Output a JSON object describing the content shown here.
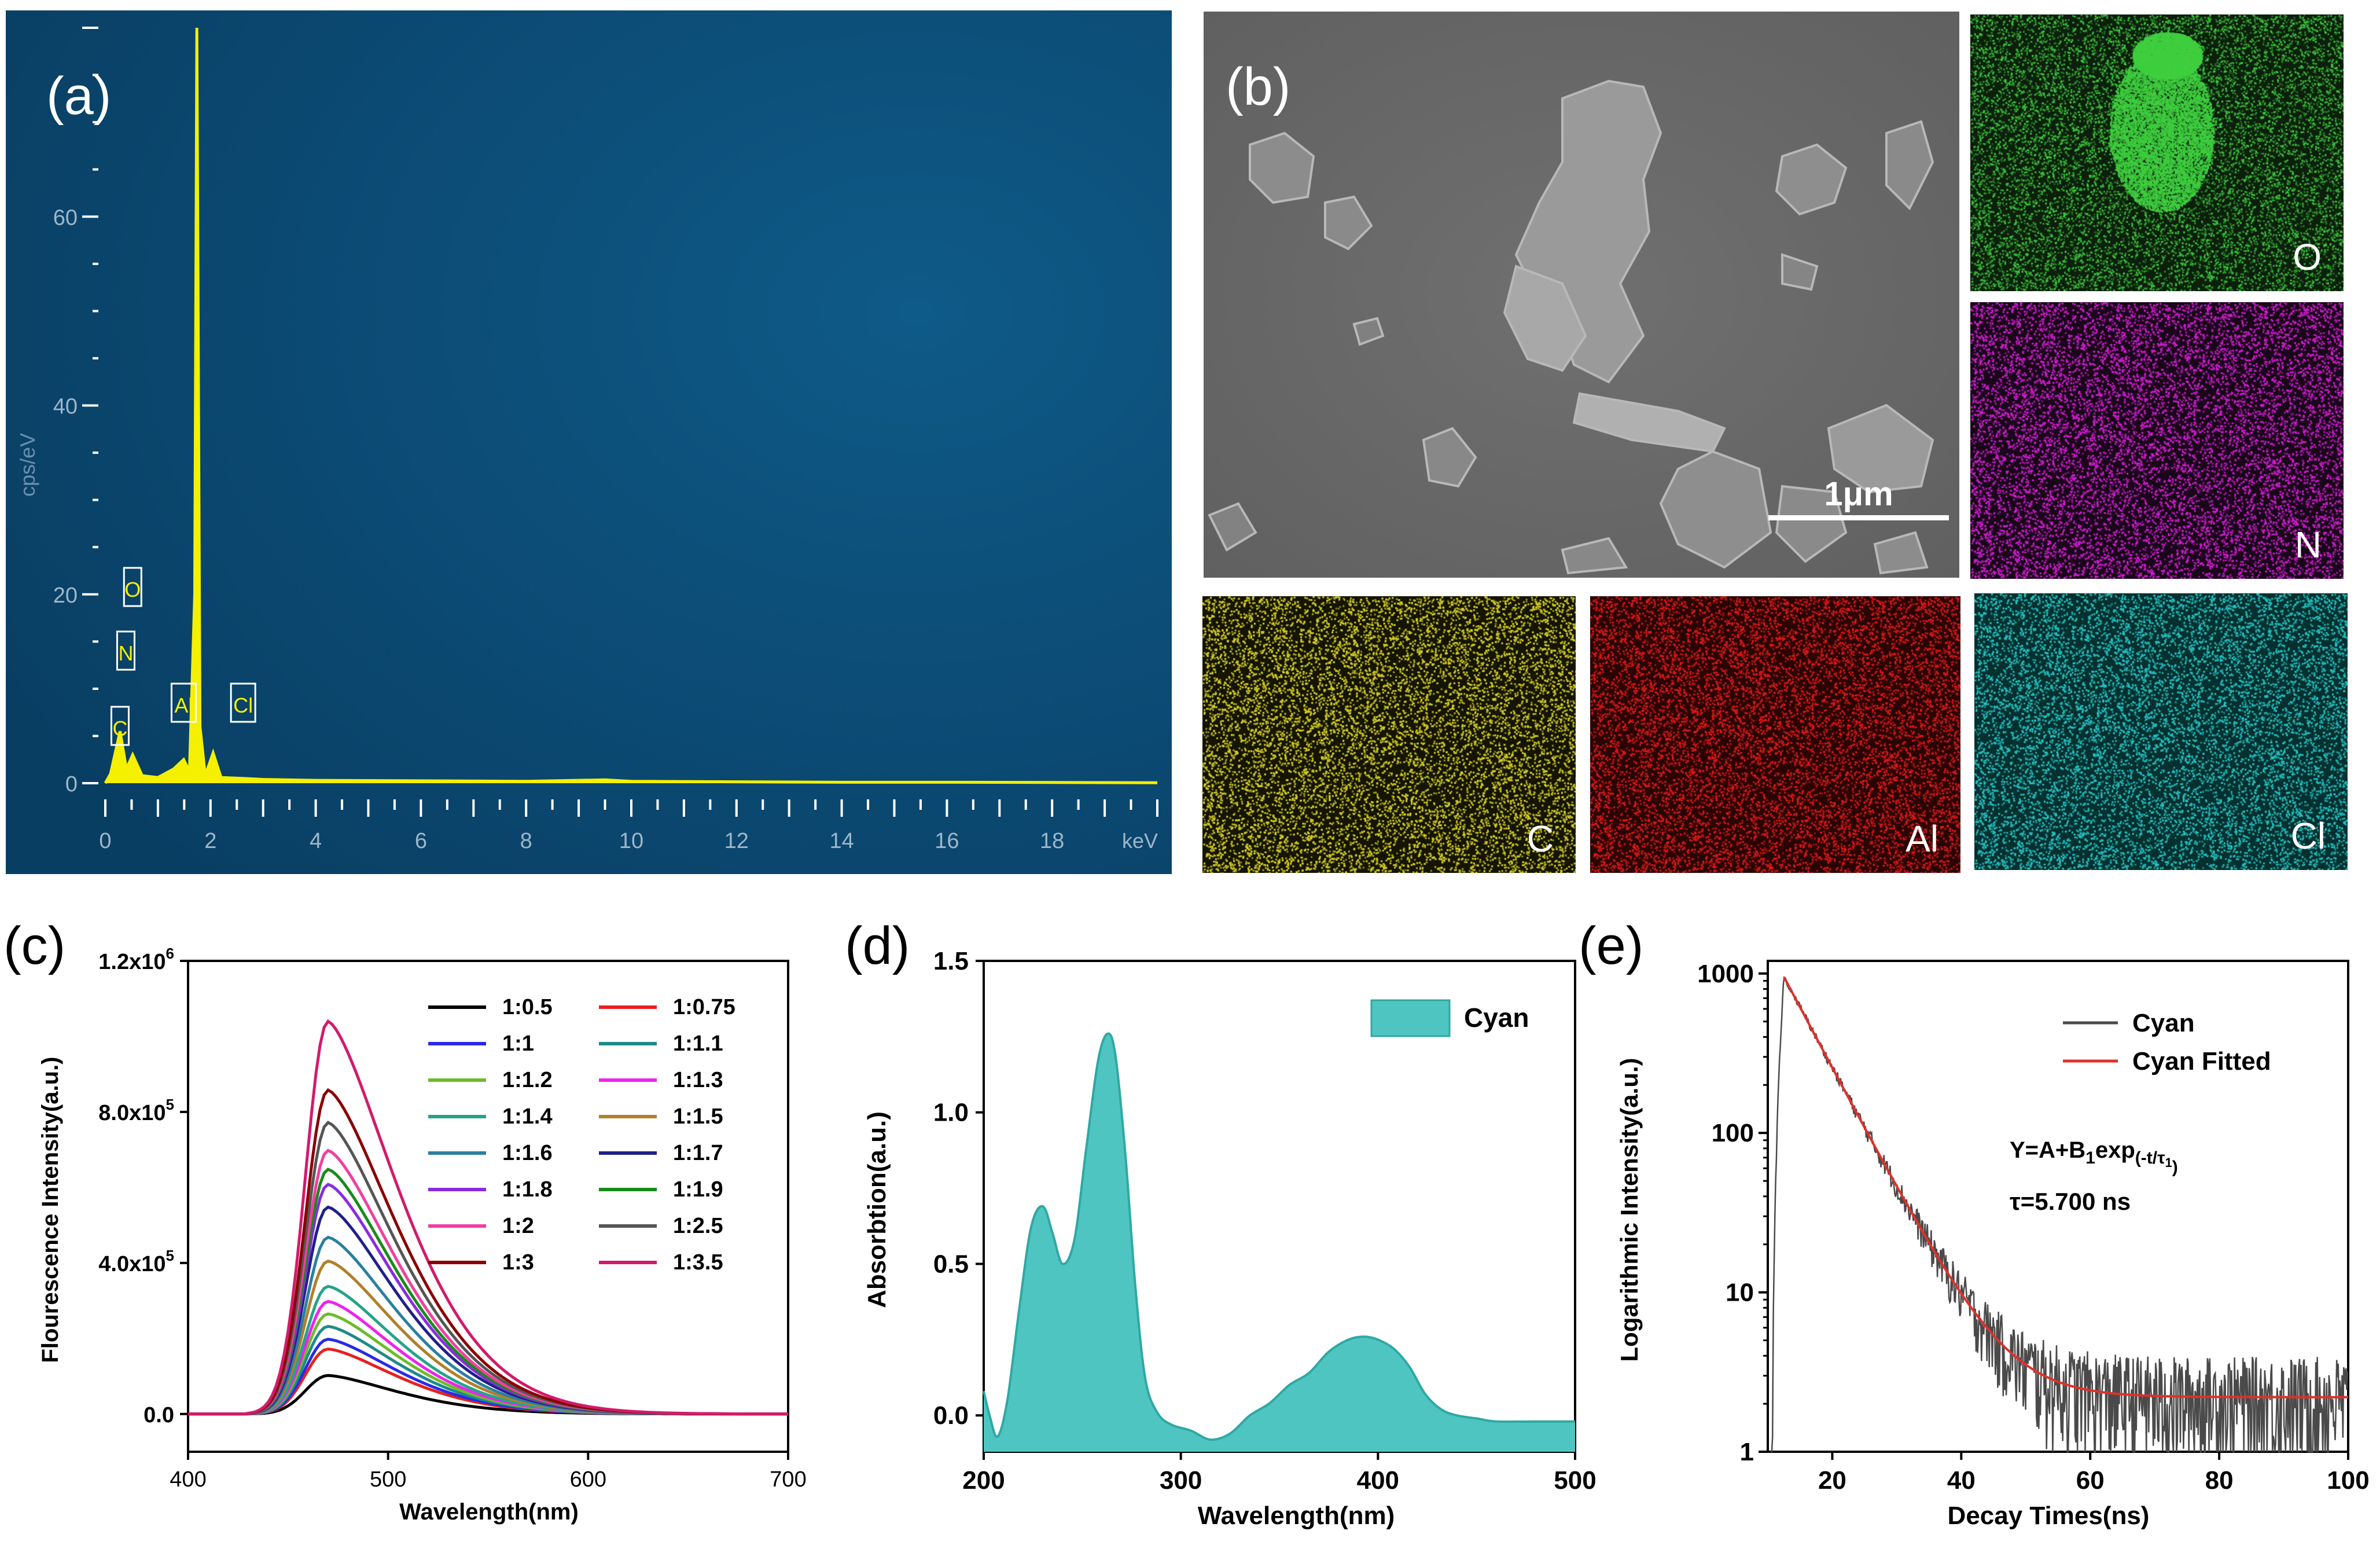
{
  "figure": {
    "panel_labels": {
      "a": "(a)",
      "b": "(b)",
      "c": "(c)",
      "d": "(d)",
      "e": "(e)"
    }
  },
  "colors": {
    "eds_bg": "#0b4d78",
    "eds_trace": "#f4f000",
    "sem_bg": "#6d6d6d",
    "O": "#3fcf3f",
    "N": "#d21fd2",
    "C": "#d6cf2a",
    "Al": "#e01a1a",
    "Cl": "#26c2c2",
    "cyan_fill": "#4ec5c1",
    "decay": "#4a4a4a",
    "fit": "#e0302a"
  },
  "eds": {
    "ylabel": "cps/eV",
    "xunit": "keV",
    "peaks": [
      "C",
      "N",
      "O",
      "Al",
      "Cl"
    ],
    "chart_data": {
      "type": "line",
      "title": "",
      "xlabel": "keV",
      "ylabel": "cps/eV",
      "xlim": [
        0,
        20
      ],
      "ylim": [
        0,
        80
      ],
      "xticks": [
        0,
        2,
        4,
        6,
        8,
        10,
        12,
        14,
        16,
        18
      ],
      "yticks": [
        0,
        20,
        40,
        60
      ],
      "x": [
        0,
        0.1,
        0.28,
        0.4,
        0.52,
        0.7,
        1.0,
        1.3,
        1.49,
        1.6,
        1.7,
        1.74,
        1.8,
        1.9,
        2.05,
        2.2,
        2.62,
        3.0,
        4,
        6,
        8,
        9.5,
        10,
        12,
        14,
        16,
        18,
        20
      ],
      "y": [
        0,
        1.0,
        5.5,
        1.5,
        3.0,
        0.8,
        0.6,
        1.5,
        2.5,
        1.2,
        20,
        80,
        6,
        0.8,
        3.2,
        0.6,
        0.5,
        0.4,
        0.3,
        0.25,
        0.2,
        0.35,
        0.2,
        0.15,
        0.1,
        0.1,
        0.08,
        0.05
      ]
    }
  },
  "sem": {
    "scale_bar": "1μm",
    "maps": [
      {
        "element": "O"
      },
      {
        "element": "N"
      },
      {
        "element": "C"
      },
      {
        "element": "Al"
      },
      {
        "element": "Cl"
      }
    ]
  },
  "panel_c": {
    "chart_data": {
      "type": "line",
      "title": "",
      "xlabel": "Wavelength(nm)",
      "ylabel": "Flourescence Intensity(a.u.)",
      "xlim": [
        400,
        700
      ],
      "ylim": [
        -100000,
        1200000
      ],
      "xticks": [
        400,
        500,
        600,
        700
      ],
      "ytick_labels": [
        "0.0",
        "4.0x10",
        "8.0x10",
        "1.2x10"
      ],
      "ytick_values": [
        0,
        400000,
        800000,
        1200000
      ],
      "ytick_exponent": "5",
      "ytick_exponent_top": "6",
      "legend_position": "top-right",
      "series": [
        {
          "name": "1:0.5",
          "peak": 102000,
          "color": "#000000"
        },
        {
          "name": "1:0.75",
          "peak": 172000,
          "color": "#e8201f"
        },
        {
          "name": "1:1",
          "peak": 198000,
          "color": "#2a2ae6"
        },
        {
          "name": "1:1.1",
          "peak": 232000,
          "color": "#1e8a8a"
        },
        {
          "name": "1:1.2",
          "peak": 265000,
          "color": "#6dbb2a"
        },
        {
          "name": "1:1.3",
          "peak": 298000,
          "color": "#ee22ee"
        },
        {
          "name": "1:1.4",
          "peak": 338000,
          "color": "#25a38a"
        },
        {
          "name": "1:1.5",
          "peak": 405000,
          "color": "#b0802a"
        },
        {
          "name": "1:1.6",
          "peak": 468000,
          "color": "#2b7fa0"
        },
        {
          "name": "1:1.7",
          "peak": 548000,
          "color": "#20208a"
        },
        {
          "name": "1:1.8",
          "peak": 608000,
          "color": "#8a2be2"
        },
        {
          "name": "1:1.9",
          "peak": 648000,
          "color": "#1a8a1a"
        },
        {
          "name": "1:2",
          "peak": 698000,
          "color": "#f040a0"
        },
        {
          "name": "1:2.5",
          "peak": 772000,
          "color": "#555555"
        },
        {
          "name": "1:3",
          "peak": 858000,
          "color": "#8b0000"
        },
        {
          "name": "1:3.5",
          "peak": 1040000,
          "color": "#d41a6a"
        }
      ],
      "peak_position_nm": 470
    }
  },
  "panel_d": {
    "chart_data": {
      "type": "area",
      "title": "",
      "xlabel": "Wavelength(nm)",
      "ylabel": "Absorbtion(a.u.)",
      "xlim": [
        200,
        500
      ],
      "ylim": [
        -0.12,
        1.5
      ],
      "xticks": [
        200,
        300,
        400,
        500
      ],
      "yticks": [
        0.0,
        0.5,
        1.0,
        1.5
      ],
      "ytick_labels": [
        "0.0",
        "0.5",
        "1.0",
        "1.5"
      ],
      "legend_position": "top-right",
      "series": [
        {
          "name": "Cyan",
          "x": [
            200,
            203,
            207,
            212,
            218,
            224,
            230,
            235,
            240,
            246,
            252,
            258,
            263,
            267,
            272,
            277,
            282,
            288,
            295,
            305,
            315,
            325,
            335,
            345,
            355,
            365,
            375,
            385,
            393,
            400,
            408,
            416,
            424,
            432,
            440,
            450,
            460,
            480,
            500
          ],
          "y": [
            0.08,
            0.0,
            -0.07,
            0.05,
            0.35,
            0.62,
            0.69,
            0.6,
            0.5,
            0.58,
            0.88,
            1.17,
            1.26,
            1.18,
            0.85,
            0.42,
            0.12,
            0.01,
            -0.03,
            -0.05,
            -0.08,
            -0.06,
            0.0,
            0.04,
            0.1,
            0.14,
            0.21,
            0.25,
            0.26,
            0.25,
            0.22,
            0.16,
            0.07,
            0.02,
            0.0,
            -0.01,
            -0.02,
            -0.02,
            -0.02
          ]
        }
      ]
    }
  },
  "panel_e": {
    "chart_data": {
      "type": "line",
      "title": "",
      "xlabel": "Decay Times(ns)",
      "ylabel": "Logarithmic Intensity(a.u.)",
      "yscale": "log",
      "xlim": [
        10,
        100
      ],
      "ylim": [
        1,
        1200
      ],
      "xticks": [
        20,
        40,
        60,
        80,
        100
      ],
      "yticks": [
        1,
        10,
        100,
        1000
      ],
      "legend_position": "top-right",
      "series": [
        {
          "name": "Cyan",
          "model": "noisy exponential decay",
          "A": 2.2,
          "B": 950,
          "t0": 12.5,
          "tau": 5.7,
          "peak_time": 12.5
        },
        {
          "name": "Cyan Fitted",
          "model": "A+B1*exp(-t/tau1)",
          "A": 2.2,
          "B": 950,
          "t0": 12.5,
          "tau": 5.7
        }
      ],
      "annotations": [
        {
          "text_main": "Y=A+B",
          "sub1": "1",
          "text_mid": "exp",
          "sub2": "(-t/τ",
          "sub3": "1",
          "sub4": ")"
        },
        {
          "text": "τ=5.700 ns"
        }
      ]
    }
  }
}
